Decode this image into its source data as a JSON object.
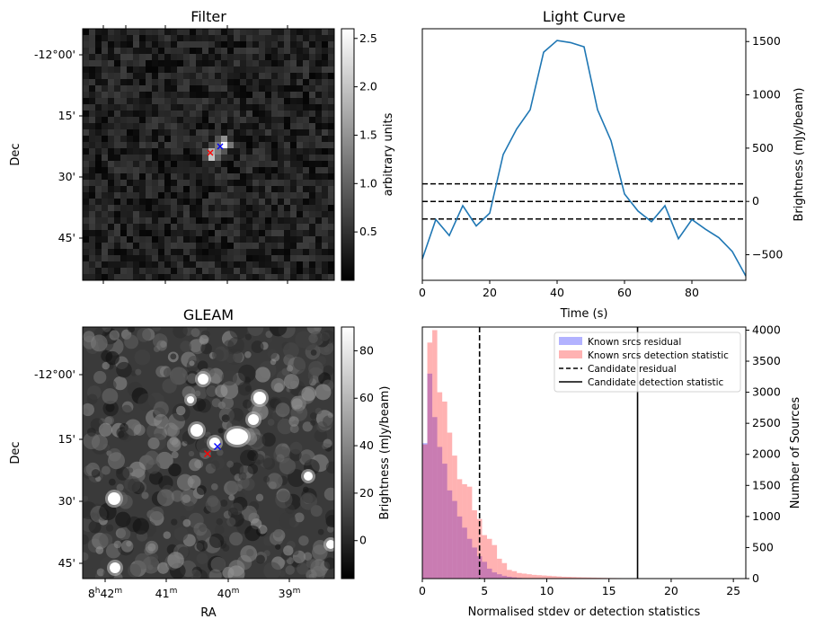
{
  "panels": {
    "filter": {
      "title": "Filter",
      "ylabel": "Dec",
      "colorbar_label": "arbitrary units",
      "colorbar_ticks": [
        "0.5",
        "1.0",
        "1.5",
        "2.0",
        "2.5"
      ],
      "dec_ticks": [
        "-12°00'",
        "15'",
        "30'",
        "45'"
      ]
    },
    "gleam": {
      "title": "GLEAM",
      "ylabel": "Dec",
      "xlabel": "RA",
      "colorbar_label": "Brightness (mJy/beam)",
      "colorbar_ticks": [
        "0",
        "20",
        "40",
        "60",
        "80"
      ],
      "dec_ticks": [
        "-12°00'",
        "15'",
        "30'",
        "45'"
      ],
      "ra_ticks": {
        "first_hours": "8",
        "first_minutes": "42",
        "rest": [
          "41",
          "40",
          "39"
        ],
        "unit_h": "h",
        "unit_m": "m"
      }
    }
  },
  "chart_data": [
    {
      "type": "heatmap",
      "title": "Filter",
      "ylabel": "Dec",
      "colorbar_label": "arbitrary units",
      "colorbar_range": [
        0.0,
        2.6
      ],
      "sources": [
        {
          "label": "red cross",
          "color": "#ff0000"
        },
        {
          "label": "blue cross",
          "color": "#0000ff"
        }
      ]
    },
    {
      "type": "line",
      "title": "Light Curve",
      "xlabel": "Time (s)",
      "ylabel": "Brightness (mJy/beam)",
      "xlim": [
        0,
        96
      ],
      "ylim": [
        -740,
        1620
      ],
      "xticks": [
        0,
        20,
        40,
        60,
        80
      ],
      "yticks": [
        -500,
        0,
        500,
        1000,
        1500
      ],
      "x": [
        0,
        4,
        8,
        12,
        16,
        20,
        24,
        28,
        32,
        36,
        40,
        44,
        48,
        52,
        56,
        60,
        64,
        68,
        72,
        76,
        80,
        84,
        88,
        92,
        96
      ],
      "y": [
        -540,
        -170,
        -320,
        -40,
        -230,
        -110,
        440,
        680,
        860,
        1400,
        1510,
        1490,
        1450,
        860,
        570,
        70,
        -90,
        -190,
        -40,
        -350,
        -170,
        -260,
        -340,
        -470,
        -700
      ],
      "hlines": [
        165,
        0,
        -165
      ],
      "line_color": "#1f77b4"
    },
    {
      "type": "heatmap",
      "title": "GLEAM",
      "xlabel": "RA",
      "ylabel": "Dec",
      "colorbar_label": "Brightness (mJy/beam)",
      "colorbar_range": [
        -16,
        90
      ]
    },
    {
      "type": "bar",
      "xlabel": "Normalised stdev or detection statistics",
      "ylabel": "Number of Sources",
      "xlim": [
        0,
        26
      ],
      "ylim": [
        0,
        4050
      ],
      "xticks": [
        0,
        5,
        10,
        15,
        20,
        25
      ],
      "yticks": [
        0,
        500,
        1000,
        1500,
        2000,
        2500,
        3000,
        3500,
        4000
      ],
      "bin_width": 0.4,
      "series": [
        {
          "name": "Known srcs residual",
          "color": "#0000ff",
          "values": [
            2180,
            3300,
            2600,
            2120,
            1850,
            1420,
            1250,
            1000,
            820,
            640,
            500,
            360,
            270,
            160,
            100,
            70,
            45,
            30,
            20,
            12,
            8,
            5,
            3,
            2
          ]
        },
        {
          "name": "Known srcs detection statistic",
          "color": "#ff0000",
          "values": [
            2160,
            3800,
            4000,
            3000,
            2850,
            2350,
            1980,
            1600,
            1520,
            1480,
            1100,
            960,
            700,
            640,
            540,
            320,
            250,
            140,
            120,
            90,
            80,
            70,
            60,
            55,
            50,
            45,
            40,
            35,
            30,
            28,
            25,
            22,
            20,
            18,
            16,
            14,
            12,
            10,
            9,
            8,
            7,
            6,
            5,
            5,
            4,
            4,
            3,
            3,
            3,
            2,
            2,
            2,
            2,
            2,
            2,
            2,
            1,
            1,
            1,
            1
          ]
        }
      ],
      "vlines": [
        {
          "name": "Candidate residual",
          "x": 4.6,
          "style": "dashed"
        },
        {
          "name": "Candidate detection statistic",
          "x": 17.3,
          "style": "solid"
        }
      ]
    }
  ]
}
